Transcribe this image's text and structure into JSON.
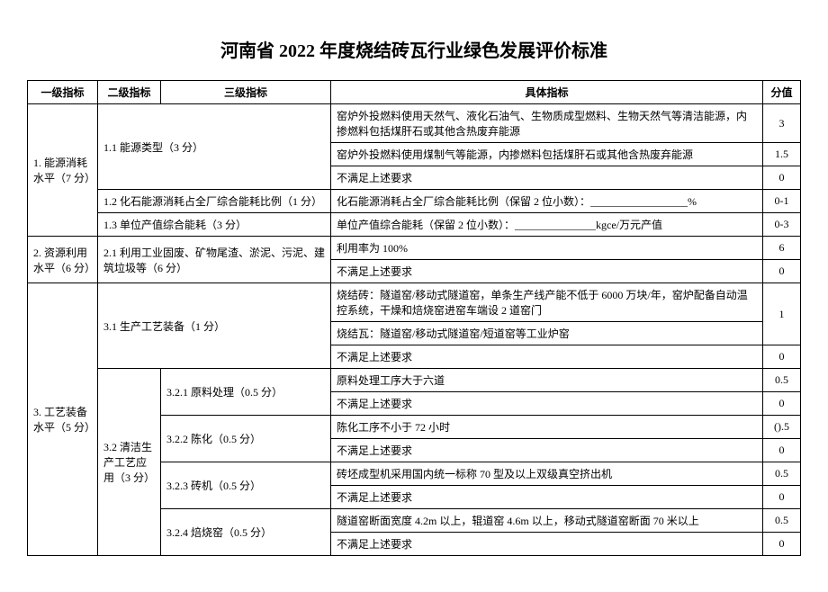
{
  "title": "河南省 2022 年度烧结砖瓦行业绿色发展评价标准",
  "headers": {
    "level1": "一级指标",
    "level2": "二级指标",
    "level3": "三级指标",
    "detail": "具体指标",
    "score": "分值"
  },
  "rows": {
    "r1": {
      "l1": "1. 能源消耗水平（7 分）",
      "l2_1": "1.1 能源类型（3 分）",
      "d1": "窑炉外投燃料使用天然气、液化石油气、生物质成型燃料、生物天然气等清洁能源，内掺燃料包括煤肝石或其他含热废弃能源",
      "s1": "3",
      "d2": "窑炉外投燃料使用煤制气等能源，内掺燃料包括煤肝石或其他含热废弃能源",
      "s2": "1.5",
      "d3": "不满足上述要求",
      "s3": "0",
      "l2_2": "1.2 化石能源消耗占全厂综合能耗比例（1 分）",
      "d4": "化石能源消耗占全厂综合能耗比例（保留 2 位小数）：__________________%",
      "s4": "0-1",
      "l2_3": "1.3 单位产值综合能耗（3 分）",
      "d5": "单位产值综合能耗（保留 2 位小数）：_______________kgce/万元产值",
      "s5": "0-3"
    },
    "r2": {
      "l1": "2. 资源利用水平（6 分）",
      "l2": "2.1 利用工业固废、矿物尾渣、淤泥、污泥、建筑垃圾等（6 分）",
      "d1": "利用率为 100%",
      "s1": "6",
      "d2": "不满足上述要求",
      "s2": "0"
    },
    "r3": {
      "l1": "3. 工艺装备水平（5 分）",
      "l2_1": "3.1 生产工艺装备（1 分）",
      "d1": "烧结砖：隧道窑/移动式隧道窑，单条生产线产能不低于 6000 万块/年，窑炉配备自动温控系统，干燥和焙烧窑进窑车端设 2 道窑门",
      "s1": "1",
      "d2": "烧结瓦：隧道窑/移动式隧道窑/短道窑等工业炉窑",
      "d3": "不满足上述要求",
      "s3": "0",
      "l2_2": "3.2 清洁生产工艺应用（3 分）",
      "l3_1": "3.2.1 原料处理（0.5 分）",
      "d4": "原料处理工序大于六道",
      "s4": "0.5",
      "d5": "不满足上述要求",
      "s5": "0",
      "l3_2": "3.2.2 陈化（0.5 分）",
      "d6": "陈化工序不小于 72 小时",
      "s6": "().5",
      "d7": "不满足上述要求",
      "s7": "0",
      "l3_3": "3.2.3 砖机（0.5 分）",
      "d8": "砖坯成型机采用国内统一标称 70 型及以上双级真空挤出机",
      "s8": "0.5",
      "d9": "不满足上述要求",
      "s9": "0",
      "l3_4": "3.2.4 焙烧窑（0.5 分）",
      "d10": "隧道窑断面宽度 4.2m 以上，辊道窑 4.6m 以上，移动式隧道窑断面 70 米以上",
      "s10": "0.5",
      "d11": "不满足上述要求",
      "s11": "0"
    }
  }
}
